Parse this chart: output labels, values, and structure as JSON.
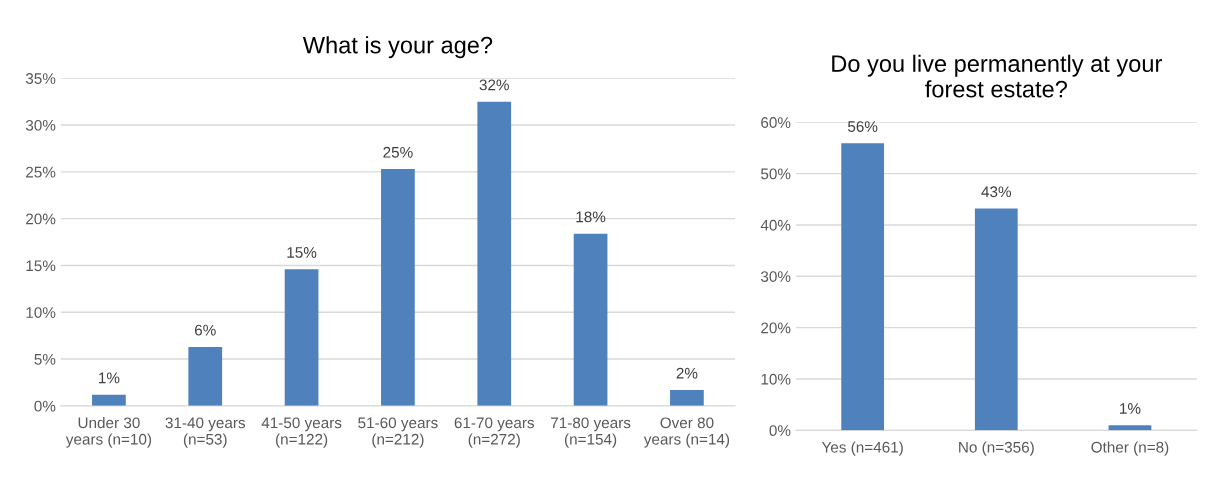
{
  "chart_data": [
    {
      "type": "bar",
      "title": "What is your age?",
      "categories": [
        "Under 30\nyears (n=10)",
        "31-40 years\n(n=53)",
        "41-50 years\n(n=122)",
        "51-60 years\n(n=212)",
        "61-70 years\n(n=272)",
        "71-80 years\n(n=154)",
        "Over 80\nyears (n=14)"
      ],
      "values": [
        1.2,
        6.3,
        14.6,
        25.3,
        32.5,
        18.4,
        1.7
      ],
      "value_labels": [
        "1%",
        "6%",
        "15%",
        "25%",
        "32%",
        "18%",
        "2%"
      ],
      "color": "#4f81bd",
      "ylim": [
        0,
        35
      ],
      "yticks": [
        {
          "value": 0,
          "label": "0%"
        },
        {
          "value": 5,
          "label": "5%"
        },
        {
          "value": 10,
          "label": "10%"
        },
        {
          "value": 15,
          "label": "15%"
        },
        {
          "value": 20,
          "label": "20%"
        },
        {
          "value": 25,
          "label": "25%"
        },
        {
          "value": 30,
          "label": "30%"
        },
        {
          "value": 35,
          "label": "35%"
        }
      ],
      "grid": "y",
      "legend": false
    },
    {
      "type": "bar",
      "title": "Do you live permanently at your\nforest estate?",
      "categories": [
        "Yes (n=461)",
        "No (n=356)",
        "Other (n=8)"
      ],
      "values": [
        55.9,
        43.2,
        1.0
      ],
      "value_labels": [
        "56%",
        "43%",
        "1%"
      ],
      "color": "#4f81bd",
      "ylim": [
        0,
        60
      ],
      "yticks": [
        {
          "value": 0,
          "label": "0%"
        },
        {
          "value": 10,
          "label": "10%"
        },
        {
          "value": 20,
          "label": "20%"
        },
        {
          "value": 30,
          "label": "30%"
        },
        {
          "value": 40,
          "label": "40%"
        },
        {
          "value": 50,
          "label": "50%"
        },
        {
          "value": 60,
          "label": "60%"
        }
      ],
      "grid": "y",
      "legend": false
    }
  ]
}
